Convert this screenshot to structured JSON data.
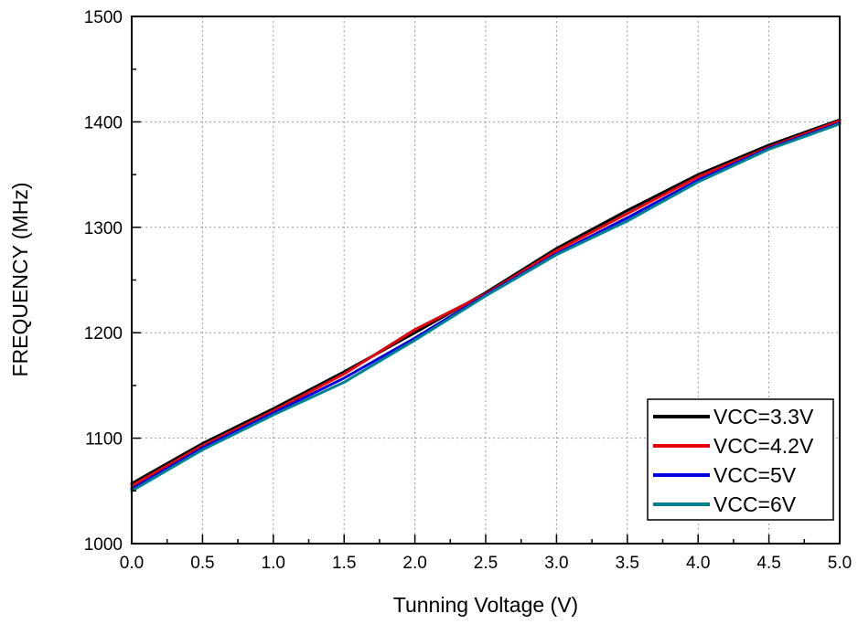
{
  "chart_data": {
    "type": "line",
    "title": "",
    "xlabel": "Tunning Voltage (V)",
    "ylabel": "FREQUENCY (MHz)",
    "xlim": [
      0.0,
      5.0
    ],
    "ylim": [
      1000,
      1500
    ],
    "x_ticks": [
      "0.0",
      "0.5",
      "1.0",
      "1.5",
      "2.0",
      "2.5",
      "3.0",
      "3.5",
      "4.0",
      "4.5",
      "5.0"
    ],
    "y_ticks": [
      "1000",
      "1100",
      "1200",
      "1300",
      "1400",
      "1500"
    ],
    "grid": true,
    "legend_position": "bottom-right",
    "x": [
      0.0,
      0.5,
      1.0,
      1.5,
      2.0,
      2.5,
      3.0,
      3.5,
      4.0,
      4.5,
      5.0
    ],
    "series": [
      {
        "name": "VCC=3.3V",
        "color": "#000000",
        "values": [
          1057,
          1095,
          1128,
          1163,
          1200,
          1238,
          1280,
          1316,
          1350,
          1378,
          1402
        ]
      },
      {
        "name": "VCC=4.2V",
        "color": "#e8000b",
        "values": [
          1055,
          1093,
          1126,
          1161,
          1203,
          1237,
          1278,
          1313,
          1348,
          1376,
          1401
        ]
      },
      {
        "name": "VCC=5V",
        "color": "#0000e0",
        "values": [
          1052,
          1091,
          1124,
          1157,
          1195,
          1236,
          1275,
          1309,
          1345,
          1375,
          1399
        ]
      },
      {
        "name": "VCC=6V",
        "color": "#00808a",
        "values": [
          1050,
          1089,
          1122,
          1153,
          1193,
          1235,
          1274,
          1306,
          1343,
          1374,
          1398
        ]
      }
    ]
  }
}
